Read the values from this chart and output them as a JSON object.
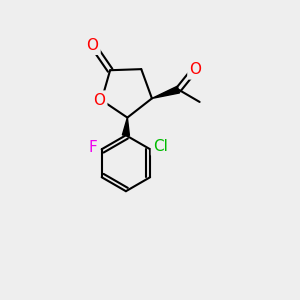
{
  "bg_color": "#eeeeee",
  "atom_colors": {
    "O": "#ff0000",
    "Cl": "#00bb00",
    "F": "#ee00ee",
    "C": "#000000"
  },
  "bond_color": "#000000",
  "bond_width": 1.5,
  "font_size_atom": 11,
  "wedge_color": "#000000"
}
